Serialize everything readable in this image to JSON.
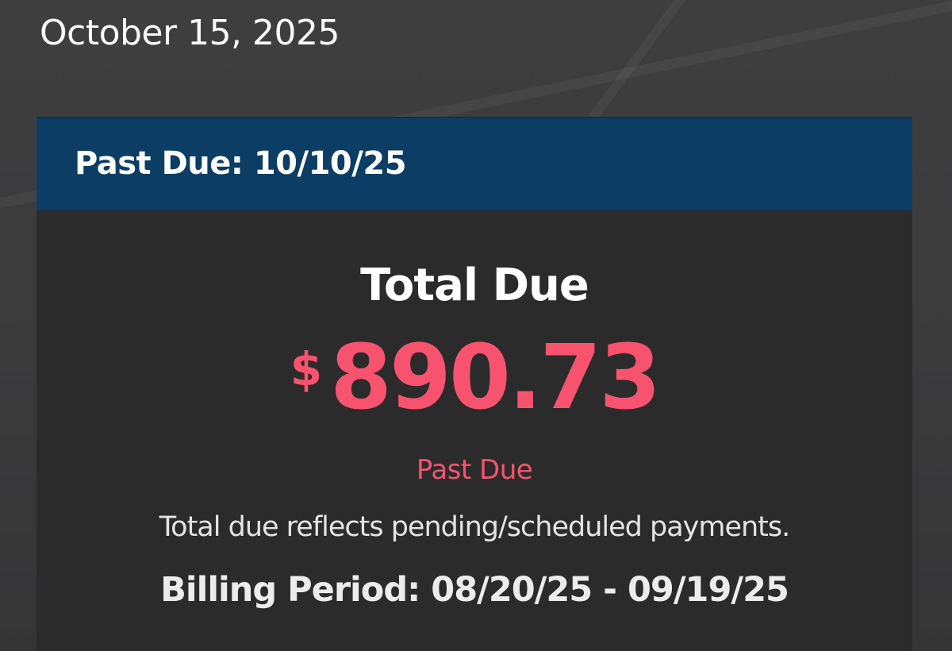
{
  "page": {
    "date": "October 15, 2025"
  },
  "card": {
    "banner_label": "Past Due: 10/10/25",
    "title": "Total Due",
    "currency_symbol": "$",
    "amount": "890.73",
    "status": "Past Due",
    "note": "Total due reflects pending/scheduled payments.",
    "billing_period": "Billing Period: 08/20/25 - 09/19/25"
  },
  "colors": {
    "page_bg": "#3b3b3c",
    "card_bg": "#2b2b2c",
    "banner_navy": "#0b3d65",
    "accent_past_due": "#f8536e",
    "text_primary": "#fafafa",
    "text_secondary": "#e4e4e4"
  }
}
